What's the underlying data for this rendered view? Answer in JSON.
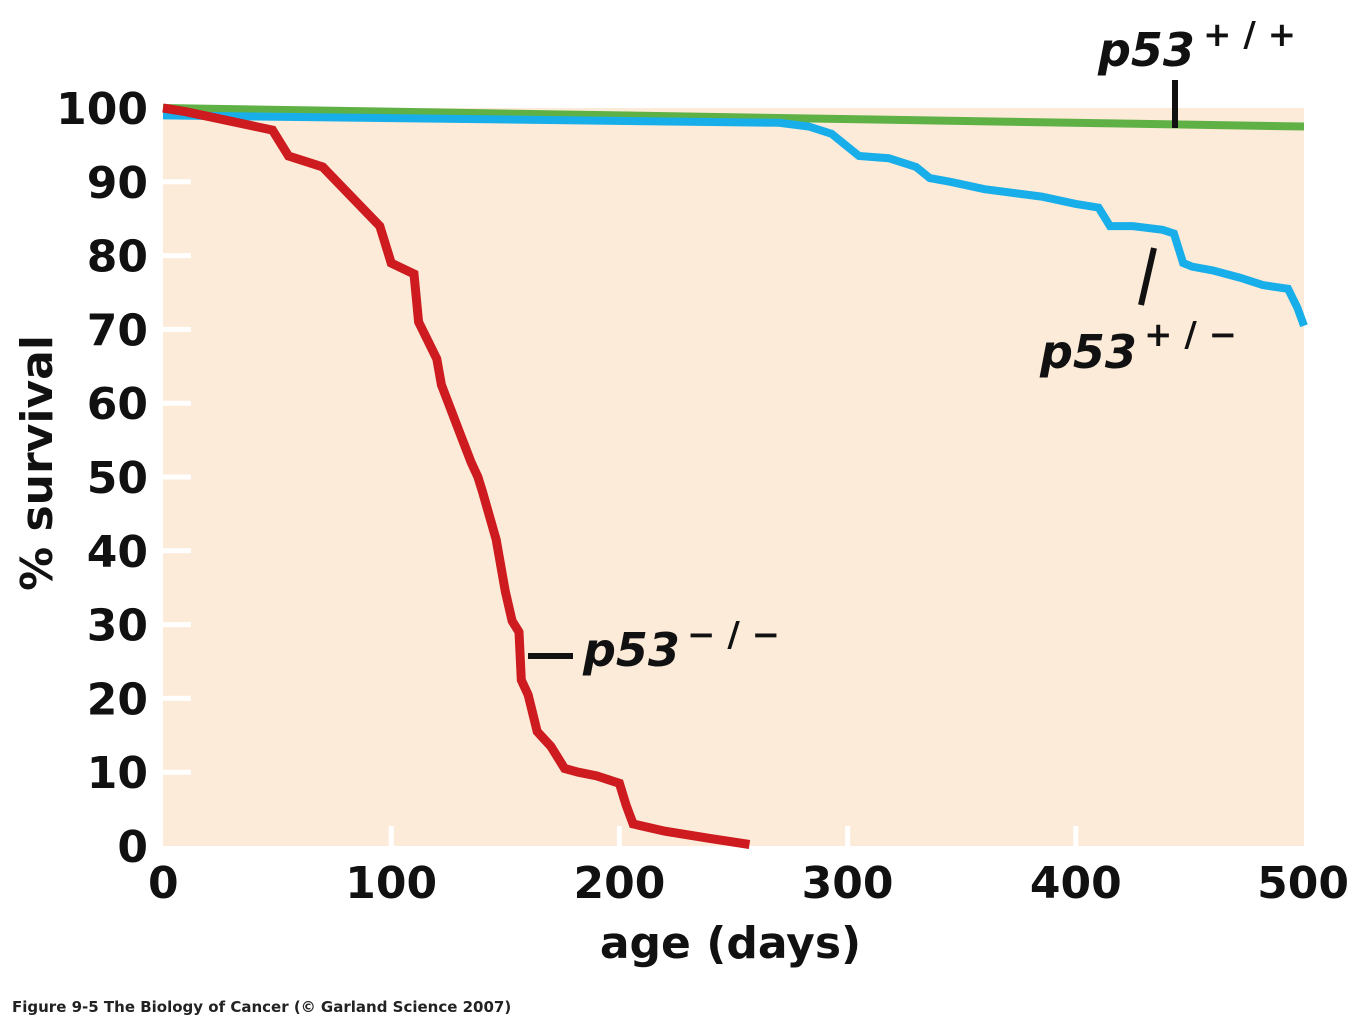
{
  "caption": "Figure 9-5  The Biology of Cancer (© Garland Science 2007)",
  "chart_data": {
    "type": "line",
    "title": "",
    "xlabel": "age (days)",
    "ylabel": "% survival",
    "xlim": [
      0,
      500
    ],
    "ylim": [
      0,
      100
    ],
    "x_ticks": [
      0,
      100,
      200,
      300,
      400,
      500
    ],
    "y_ticks": [
      0,
      10,
      20,
      30,
      40,
      50,
      60,
      70,
      80,
      90,
      100
    ],
    "grid": false,
    "legend": "none (direct labels)",
    "plot_background": "#fdebd9",
    "series": [
      {
        "name": "p53",
        "superscript": "+ / +",
        "color": "#5fb146",
        "x": [
          0,
          500
        ],
        "y": [
          100,
          97.5
        ]
      },
      {
        "name": "p53",
        "superscript": "+ / −",
        "color": "#18aeea",
        "x": [
          0,
          270,
          283,
          293,
          305,
          318,
          330,
          336,
          345,
          360,
          385,
          400,
          410,
          415,
          425,
          438,
          443,
          447,
          451,
          460,
          472,
          482,
          493,
          497,
          500
        ],
        "y": [
          99,
          98,
          97.5,
          96.5,
          93.5,
          93.2,
          92,
          90.5,
          90,
          89,
          88,
          87,
          86.5,
          84,
          84,
          83.5,
          83,
          79,
          78.5,
          78,
          77,
          76,
          75.5,
          73,
          70.5
        ]
      },
      {
        "name": "p53",
        "superscript": "− / −",
        "color": "#cd1b1f",
        "x": [
          0,
          10,
          48,
          55,
          70,
          95,
          100,
          110,
          112,
          120,
          122,
          130,
          135,
          138,
          140,
          146,
          150,
          153,
          156,
          157,
          160,
          164,
          170,
          176,
          182,
          190,
          200,
          203,
          206,
          220,
          240,
          257
        ],
        "y": [
          100,
          99.5,
          97,
          93.5,
          92,
          84,
          79,
          77.5,
          71,
          66,
          62.5,
          56,
          52,
          50,
          48,
          41.5,
          34.5,
          30.5,
          29,
          22.5,
          20.5,
          15.5,
          13.5,
          10.5,
          10,
          9.5,
          8.5,
          5.5,
          3,
          2,
          1,
          0.2
        ]
      }
    ]
  }
}
